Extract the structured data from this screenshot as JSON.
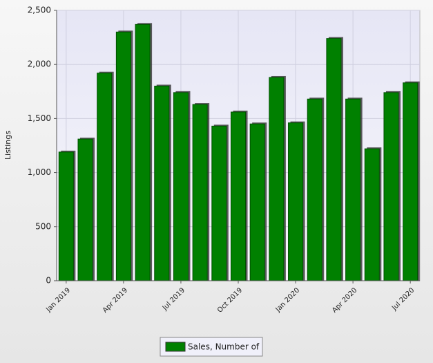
{
  "chart_data": {
    "type": "bar",
    "y_label": "Listings",
    "categories": [
      "Jan 2019",
      null,
      null,
      "Apr 2019",
      null,
      null,
      "Jul 2019",
      null,
      null,
      "Oct 2019",
      null,
      null,
      "Jan 2020",
      null,
      null,
      "Apr 2020",
      null,
      null,
      "Jul 2020"
    ],
    "series": [
      {
        "name": "Sales, Number of",
        "color": "#008000",
        "values": [
          1190,
          1310,
          1920,
          2300,
          2370,
          1800,
          1740,
          1630,
          1430,
          1560,
          1450,
          1880,
          1460,
          1680,
          2240,
          1680,
          1220,
          1740,
          1830
        ]
      }
    ],
    "ylim": [
      0,
      2500
    ],
    "yticks": [
      0,
      500,
      {
        "value": 1000,
        "label": "1,000"
      },
      {
        "value": 1500,
        "label": "1,500"
      },
      {
        "value": 2000,
        "label": "2,000"
      },
      {
        "value": 2500,
        "label": "2,500"
      }
    ],
    "grid": true,
    "legend": "bottom"
  }
}
